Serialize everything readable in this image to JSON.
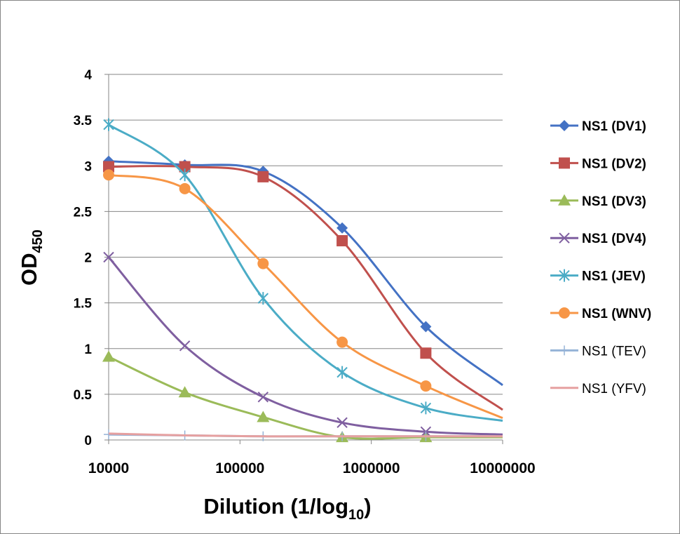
{
  "chart_data": {
    "type": "line",
    "x_scale": "log",
    "xlabel": "Dilution (1/log",
    "xlabel_sub": "10",
    "xlabel_tail": ")",
    "ylabel": "OD",
    "ylabel_sub": "450",
    "xlim": [
      10000,
      10000000
    ],
    "ylim": [
      0,
      4
    ],
    "grid": "horizontal",
    "legend_position": "right",
    "x_ticks": [
      "10000",
      "100000",
      "1000000",
      "10000000"
    ],
    "y_ticks": [
      "0",
      "0.5",
      "1",
      "1.5",
      "2",
      "2.5",
      "3",
      "3.5",
      "4"
    ],
    "x": [
      10000,
      38000,
      150000,
      600000,
      2600000,
      10000000
    ],
    "series": [
      {
        "name": "NS1 (DV1)",
        "color": "#4472C4",
        "marker": "diamond",
        "bold": true,
        "values": [
          3.05,
          3.01,
          2.94,
          2.32,
          1.24,
          0.6
        ]
      },
      {
        "name": "NS1 (DV2)",
        "color": "#C0504D",
        "marker": "square",
        "bold": true,
        "values": [
          2.99,
          2.99,
          2.88,
          2.18,
          0.95,
          0.33
        ]
      },
      {
        "name": "NS1 (DV3)",
        "color": "#9BBB59",
        "marker": "triangle",
        "bold": true,
        "values": [
          0.91,
          0.52,
          0.25,
          0.03,
          0.03,
          0.03
        ]
      },
      {
        "name": "NS1 (DV4)",
        "color": "#7F5FA0",
        "marker": "x",
        "bold": true,
        "values": [
          2.0,
          1.03,
          0.47,
          0.19,
          0.09,
          0.06
        ]
      },
      {
        "name": "NS1 (JEV)",
        "color": "#4BACC6",
        "marker": "asterisk",
        "bold": true,
        "values": [
          3.45,
          2.9,
          1.55,
          0.74,
          0.35,
          0.21
        ]
      },
      {
        "name": "NS1 (WNV)",
        "color": "#F79646",
        "marker": "circle",
        "bold": true,
        "values": [
          2.9,
          2.75,
          1.93,
          1.07,
          0.59,
          0.24
        ]
      },
      {
        "name": "NS1 (TEV)",
        "color": "#95B3D7",
        "marker": "plus",
        "bold": false,
        "values": [
          0.06,
          0.05,
          0.04,
          0.04,
          0.04,
          0.04
        ]
      },
      {
        "name": "NS1 (YFV)",
        "color": "#E6A0A0",
        "marker": "none",
        "bold": false,
        "values": [
          0.07,
          0.05,
          0.04,
          0.04,
          0.04,
          0.04
        ]
      }
    ]
  }
}
